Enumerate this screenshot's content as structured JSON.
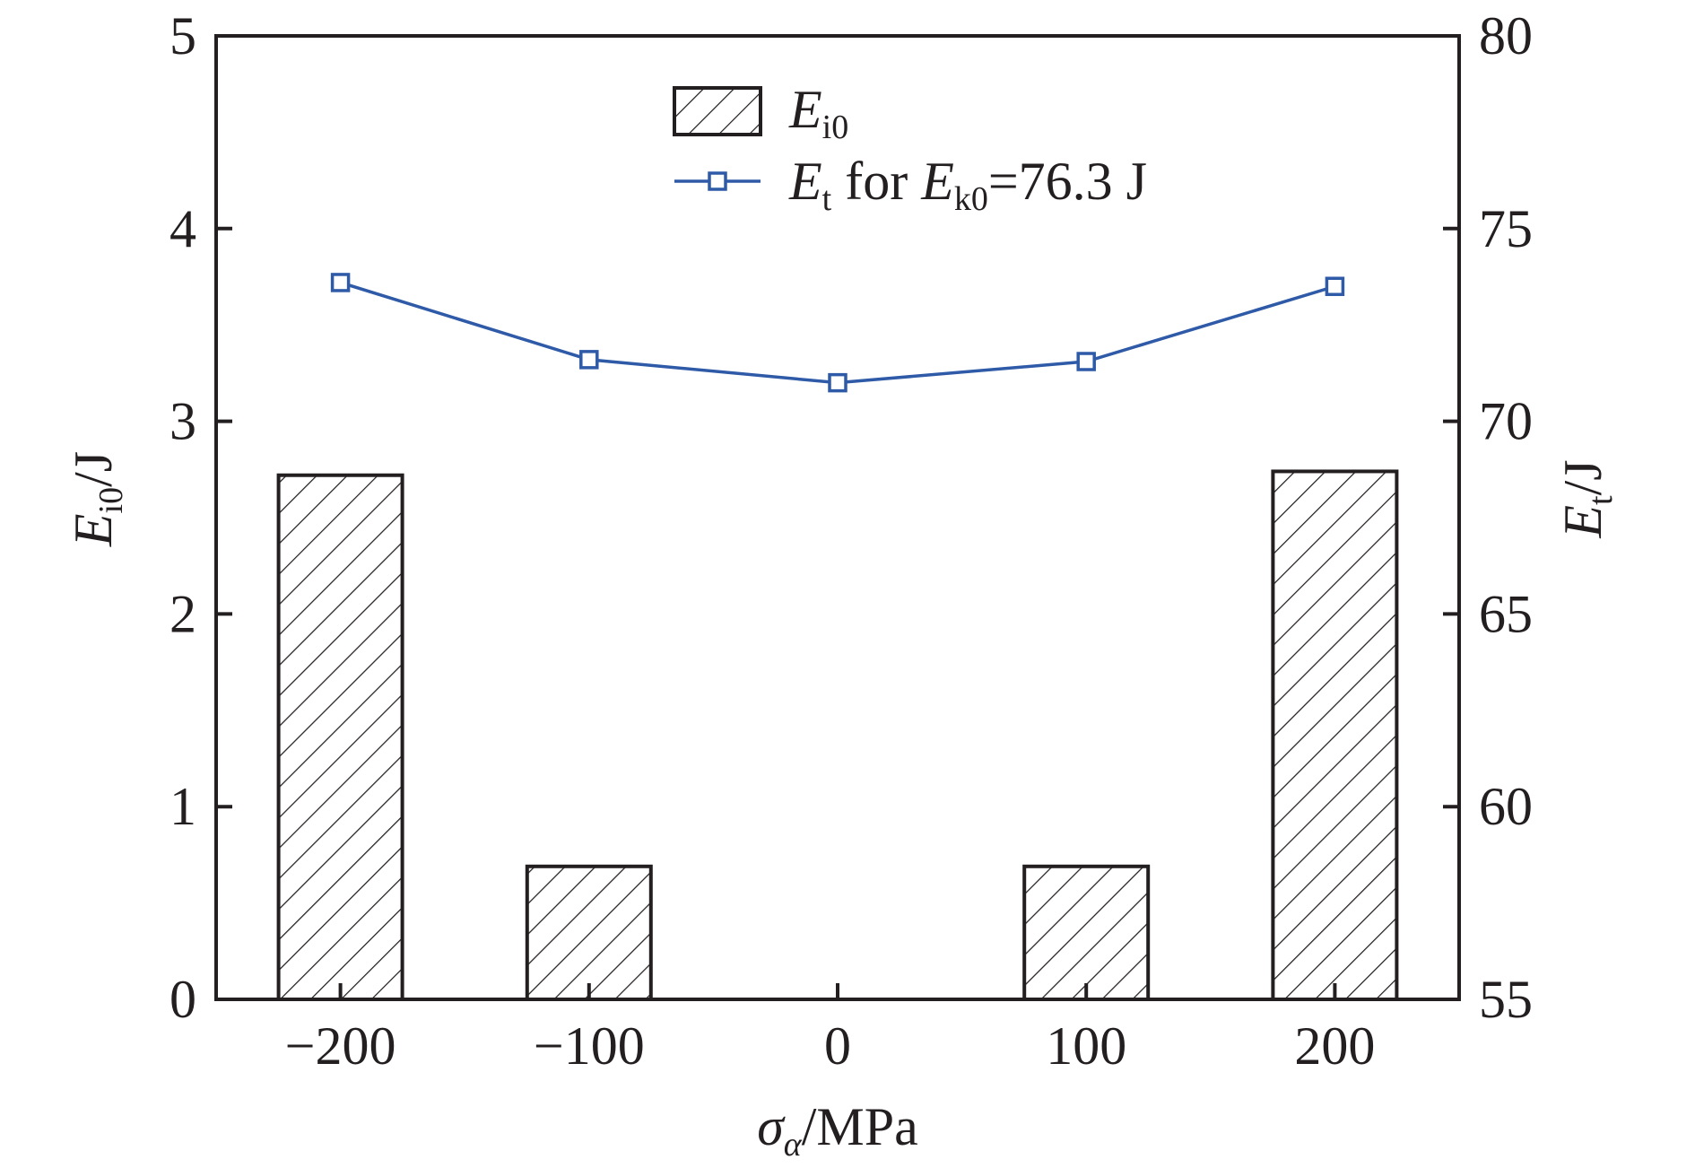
{
  "chart_data": {
    "type": "bar",
    "categories": [
      "−200",
      "−100",
      "0",
      "100",
      "200"
    ],
    "x": [
      -200,
      -100,
      0,
      100,
      200
    ],
    "series": [
      {
        "kind": "bar",
        "axis": "left",
        "name": {
          "base": "E",
          "sub": "i0",
          "rest": ""
        },
        "values": [
          2.72,
          0.69,
          0,
          0.69,
          2.74
        ],
        "fill": "hatched"
      },
      {
        "kind": "line",
        "axis": "right",
        "name": {
          "base": "E",
          "sub": "t",
          "rest": " for ",
          "base2": "E",
          "sub2": "k0",
          "rest2": "=76.3 J"
        },
        "values": [
          73.6,
          71.6,
          71.0,
          71.55,
          73.5
        ],
        "color": "#2e5aa7",
        "marker": "open-square"
      }
    ],
    "xlabel": {
      "base": "σ",
      "sub": "α",
      "rest": "/MPa"
    },
    "ylabel_left": {
      "base": "E",
      "sub": "i0",
      "rest": "/J"
    },
    "ylabel_right": {
      "base": "E",
      "sub": "t",
      "rest": "/J"
    },
    "xlim": [
      -250,
      250
    ],
    "ylim_left": [
      0,
      5
    ],
    "ylim_right": [
      55,
      80
    ],
    "yticks_left": [
      0,
      1,
      2,
      3,
      4,
      5
    ],
    "yticks_right": [
      55,
      60,
      65,
      70,
      75,
      80
    ],
    "grid": false,
    "legend_position": "top-center",
    "colors": {
      "axis": "#231f20",
      "line": "#2e5aa7",
      "hatch": "#231f20"
    }
  }
}
